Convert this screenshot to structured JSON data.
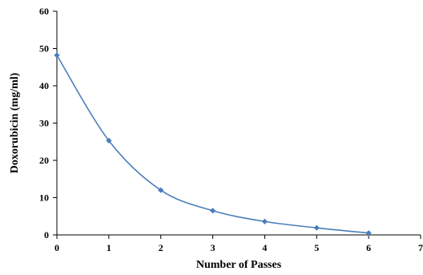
{
  "chart_data": {
    "type": "line",
    "title": "",
    "xlabel": "Number of Passes",
    "ylabel": "Doxorubicin (mg/ml)",
    "xlim": [
      0,
      7
    ],
    "ylim": [
      0,
      60
    ],
    "x_ticks": [
      "0",
      "1",
      "2",
      "3",
      "4",
      "5",
      "6",
      "7"
    ],
    "y_ticks": [
      "0",
      "10",
      "20",
      "30",
      "40",
      "50",
      "60"
    ],
    "grid": false,
    "legend": "none",
    "series": [
      {
        "x": [
          0,
          1,
          2,
          3,
          4,
          5,
          6
        ],
        "values": [
          48.2,
          25.3,
          12.0,
          6.5,
          3.6,
          1.9,
          0.5
        ],
        "marker": "diamond",
        "smooth": true,
        "color": "#4a7ebb"
      }
    ],
    "colors": {
      "series": "#4a7ebb",
      "axis": "#000000"
    }
  }
}
